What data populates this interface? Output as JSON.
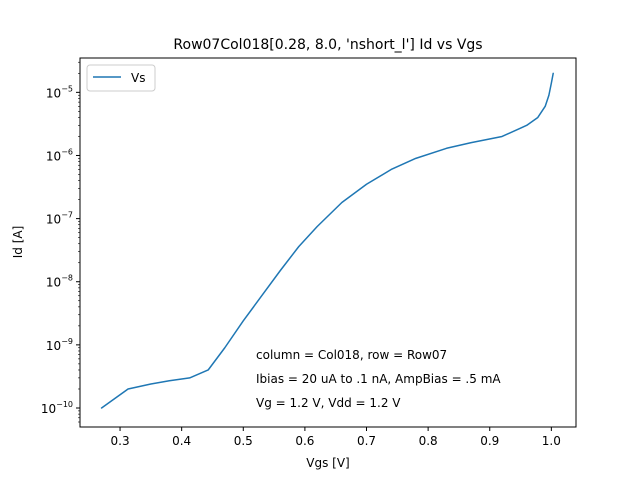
{
  "chart_data": {
    "type": "line",
    "title": "Row07Col018[0.28, 8.0, 'nshort_l'] Id vs Vgs",
    "xlabel": "Vgs [V]",
    "ylabel": "Id [A]",
    "xlim": [
      0.235,
      1.04
    ],
    "ylim": [
      5e-11,
      3.5e-05
    ],
    "yscale": "log",
    "x_ticks": [
      0.3,
      0.4,
      0.5,
      0.6,
      0.7,
      0.8,
      0.9,
      1.0
    ],
    "x_tick_labels": [
      "0.3",
      "0.4",
      "0.5",
      "0.6",
      "0.7",
      "0.8",
      "0.9",
      "1.0"
    ],
    "y_ticks": [
      1e-10,
      1e-09,
      1e-08,
      1e-07,
      1e-06,
      1e-05
    ],
    "y_tick_labels": [
      {
        "base": "10",
        "exp": "−10"
      },
      {
        "base": "10",
        "exp": "−9"
      },
      {
        "base": "10",
        "exp": "−8"
      },
      {
        "base": "10",
        "exp": "−7"
      },
      {
        "base": "10",
        "exp": "−6"
      },
      {
        "base": "10",
        "exp": "−5"
      }
    ],
    "grid": false,
    "legend_position": "top-left",
    "annotations": [
      "column = Col018, row = Row07",
      "Ibias = 20 uA to .1 nA, AmpBias = .5 mA",
      "Vg = 1.2 V, Vdd = 1.2 V"
    ],
    "series": [
      {
        "name": "Vs",
        "color": "#1f77b4",
        "x": [
          0.27,
          0.313,
          0.35,
          0.38,
          0.413,
          0.443,
          0.47,
          0.5,
          0.53,
          0.56,
          0.59,
          0.62,
          0.66,
          0.7,
          0.74,
          0.78,
          0.83,
          0.87,
          0.92,
          0.96,
          0.978,
          0.99,
          0.996,
          1.0,
          1.003
        ],
        "y": [
          1e-10,
          2e-10,
          2.4e-10,
          2.7e-10,
          3e-10,
          4e-10,
          9e-10,
          2.4e-09,
          6e-09,
          1.5e-08,
          3.6e-08,
          7.5e-08,
          1.8e-07,
          3.5e-07,
          6e-07,
          9e-07,
          1.3e-06,
          1.6e-06,
          2e-06,
          3e-06,
          4e-06,
          6e-06,
          9e-06,
          1.4e-05,
          2e-05
        ]
      }
    ]
  }
}
